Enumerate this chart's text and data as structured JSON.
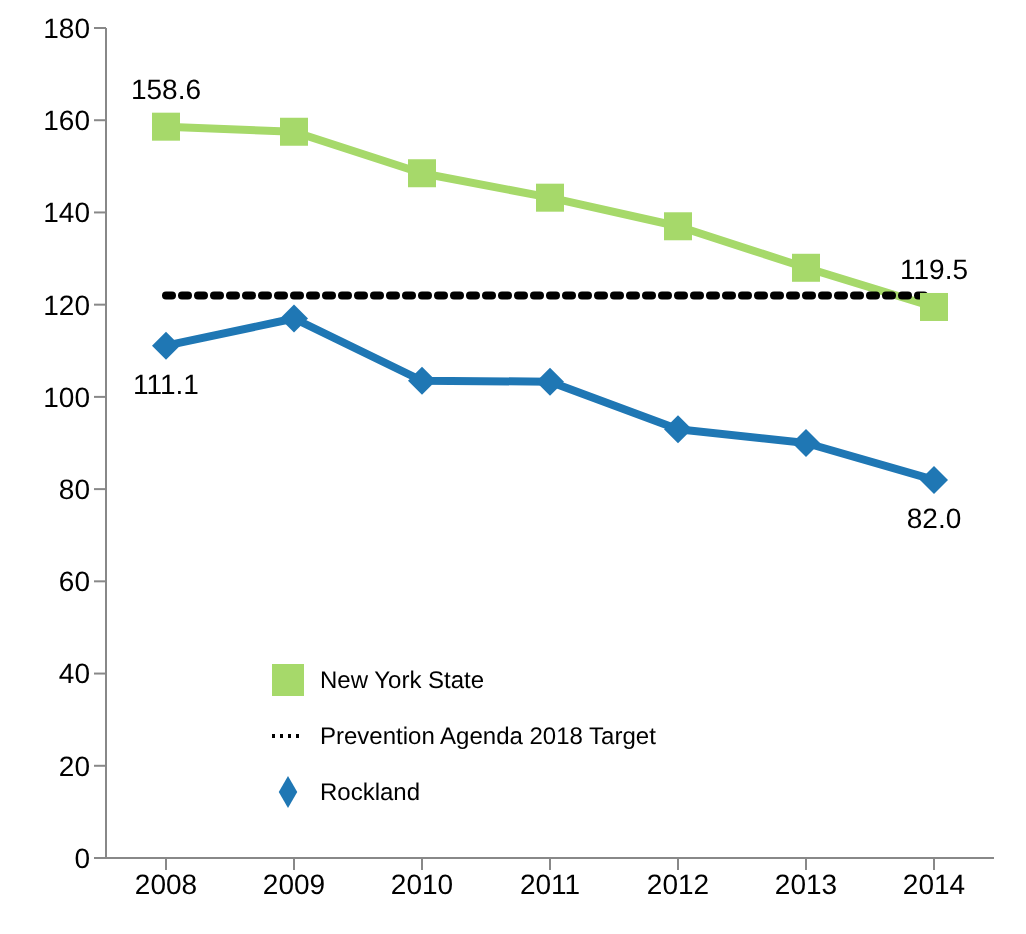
{
  "chart_data": {
    "type": "line",
    "categories": [
      "2008",
      "2009",
      "2010",
      "2011",
      "2012",
      "2013",
      "2014"
    ],
    "series": [
      {
        "name": "Rockland",
        "color": "#1f77b4",
        "marker": "diamond",
        "values": [
          111.1,
          117,
          103.5,
          103.3,
          93,
          90,
          82.0
        ],
        "value_labels": [
          "111.1",
          null,
          null,
          null,
          null,
          null,
          "82.0"
        ]
      },
      {
        "name": "New York State",
        "color": "#a6d96a",
        "marker": "square",
        "values": [
          158.6,
          157.5,
          148.5,
          143.2,
          137,
          128,
          119.5
        ],
        "value_labels": [
          "158.6",
          null,
          null,
          null,
          null,
          null,
          "119.5"
        ]
      },
      {
        "name": "Prevention Agenda 2018 Target",
        "color": "#000000",
        "marker": "none",
        "line_style": "dotted",
        "values": [
          122,
          122,
          122,
          122,
          122,
          122,
          122
        ]
      }
    ],
    "ylim": [
      0,
      180
    ],
    "yticks": [
      0,
      20,
      40,
      60,
      80,
      100,
      120,
      140,
      160,
      180
    ],
    "grid": false,
    "legend": "bottom left"
  }
}
